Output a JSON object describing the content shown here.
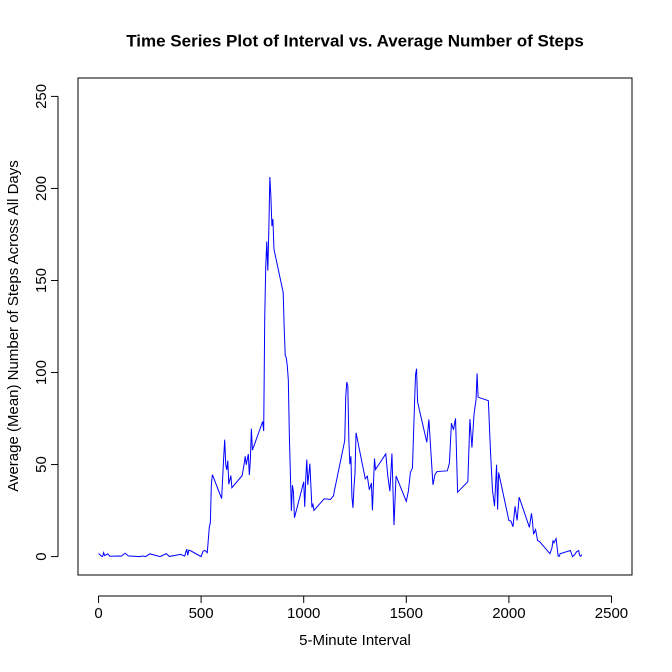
{
  "chart_data": {
    "type": "line",
    "title": "Time Series Plot of Interval vs. Average Number of Steps",
    "x_label": "5-Minute Interval",
    "y_label": "Average (Mean) Number of Steps Across All Days",
    "xlim": [
      -100,
      2600
    ],
    "ylim": [
      -10,
      260
    ],
    "xticks": [
      0,
      500,
      1000,
      1500,
      2000,
      2500
    ],
    "yticks": [
      0,
      50,
      100,
      150,
      200,
      250
    ],
    "x": [
      0,
      15,
      20,
      25,
      30,
      45,
      55,
      100,
      110,
      130,
      145,
      200,
      215,
      230,
      250,
      300,
      330,
      345,
      400,
      420,
      430,
      435,
      440,
      450,
      500,
      510,
      520,
      530,
      540,
      545,
      550,
      555,
      600,
      610,
      615,
      620,
      625,
      630,
      635,
      645,
      650,
      700,
      710,
      715,
      720,
      730,
      735,
      740,
      745,
      750,
      800,
      805,
      810,
      815,
      820,
      825,
      830,
      835,
      840,
      845,
      850,
      855,
      900,
      905,
      910,
      915,
      920,
      925,
      930,
      935,
      940,
      945,
      950,
      955,
      1000,
      1005,
      1010,
      1015,
      1020,
      1030,
      1040,
      1045,
      1050,
      1100,
      1130,
      1145,
      1150,
      1200,
      1205,
      1210,
      1215,
      1220,
      1225,
      1230,
      1235,
      1240,
      1245,
      1250,
      1255,
      1300,
      1310,
      1320,
      1330,
      1335,
      1340,
      1345,
      1350,
      1400,
      1410,
      1420,
      1430,
      1440,
      1450,
      1500,
      1510,
      1520,
      1530,
      1535,
      1540,
      1545,
      1550,
      1555,
      1600,
      1610,
      1620,
      1630,
      1640,
      1650,
      1700,
      1710,
      1720,
      1730,
      1740,
      1750,
      1800,
      1810,
      1820,
      1830,
      1840,
      1845,
      1850,
      1900,
      1910,
      1920,
      1930,
      1940,
      1945,
      1950,
      2000,
      2010,
      2020,
      2030,
      2040,
      2050,
      2100,
      2110,
      2115,
      2120,
      2130,
      2140,
      2150,
      2200,
      2210,
      2215,
      2220,
      2225,
      2230,
      2240,
      2245,
      2250,
      2300,
      2310,
      2320,
      2330,
      2340,
      2345,
      2350,
      2355
    ],
    "series": [
      {
        "color": "#0000ff",
        "values": [
          1.7,
          0.2,
          0.1,
          2.1,
          0.5,
          1.5,
          0.2,
          0.3,
          0.2,
          1.8,
          0.4,
          0,
          0.3,
          0,
          1.5,
          0,
          1.6,
          0.1,
          1.2,
          0.3,
          4.1,
          0.7,
          3.5,
          3.1,
          0,
          3.0,
          3.3,
          2.1,
          16.0,
          18.3,
          39.5,
          44.5,
          31.5,
          53.8,
          63.5,
          49.9,
          47.1,
          52.2,
          39.3,
          44.0,
          37.4,
          44.0,
          50.5,
          54.5,
          49.9,
          55.7,
          44.3,
          52.3,
          69.5,
          57.8,
          73.4,
          68.2,
          129.4,
          157.5,
          171.2,
          155.4,
          177.3,
          206.2,
          195.9,
          179.6,
          183.4,
          167.0,
          143.5,
          124.0,
          109.1,
          108.1,
          103.7,
          96.0,
          66.2,
          45.2,
          24.8,
          38.8,
          35.0,
          21.1,
          40.6,
          27.0,
          42.4,
          52.7,
          38.9,
          50.5,
          26.7,
          28.3,
          25.1,
          31.4,
          31.0,
          33.0,
          36.0,
          63.0,
          87.0,
          94.8,
          92.8,
          63.4,
          50.2,
          54.5,
          32.4,
          26.5,
          37.7,
          45.1,
          67.3,
          42.3,
          43.7,
          36.3,
          40.0,
          25.1,
          39.5,
          53.3,
          47.3,
          55.8,
          43.6,
          35.5,
          56.0,
          17.1,
          43.8,
          30.0,
          35.5,
          45.7,
          48.1,
          65.3,
          82.9,
          98.7,
          102.1,
          84.0,
          62.1,
          74.5,
          56.7,
          39.0,
          44.7,
          46.2,
          46.6,
          50.7,
          72.5,
          68.9,
          75.1,
          35.0,
          40.7,
          74.7,
          59.3,
          77.4,
          85.3,
          99.5,
          86.6,
          84.7,
          58.0,
          36.1,
          27.4,
          49.9,
          25.5,
          45.7,
          19.6,
          19.3,
          16.2,
          27.3,
          19.6,
          32.3,
          15.9,
          23.5,
          19.2,
          12.2,
          14.7,
          8.7,
          8.1,
          1.6,
          4.8,
          8.5,
          7.5,
          8.7,
          9.8,
          0.3,
          0.1,
          1.6,
          3.3,
          0,
          1.0,
          2.6,
          3.3,
          0.6,
          0.2,
          1.1
        ]
      }
    ]
  }
}
